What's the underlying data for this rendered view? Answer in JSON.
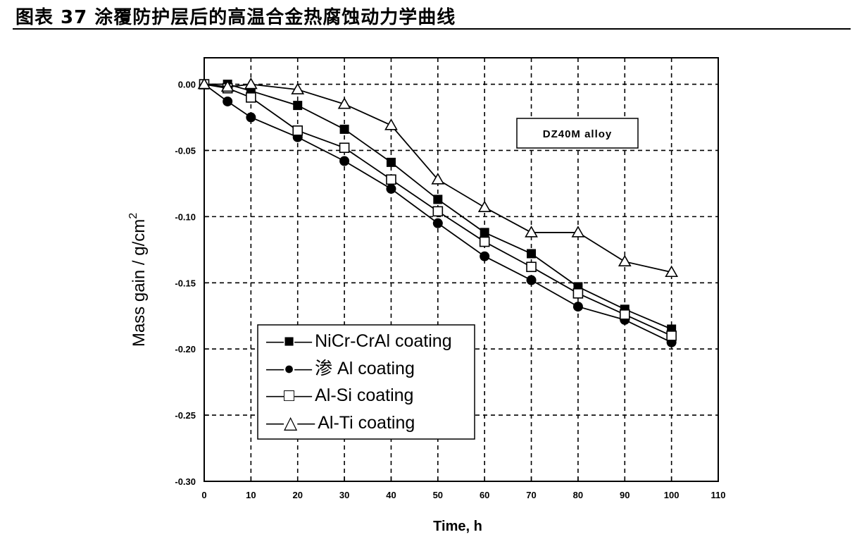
{
  "figure_title": "图表 37 涂覆防护层后的高温合金热腐蚀动力学曲线",
  "colors": {
    "axis": "#000000",
    "grid": "#000000",
    "series": "#000000",
    "background": "#ffffff"
  },
  "chart_data": {
    "type": "line",
    "xlabel": "Time, h",
    "ylabel": "Mass gain / g/cm",
    "ylabel_superscript": "2",
    "xlim": [
      0,
      110
    ],
    "ylim": [
      -0.3,
      0.02
    ],
    "x_ticks": [
      0,
      10,
      20,
      30,
      40,
      50,
      60,
      70,
      80,
      90,
      100,
      110
    ],
    "x_tick_labels": [
      "0",
      "10",
      "20",
      "30",
      "40",
      "50",
      "60",
      "70",
      "80",
      "90",
      "100",
      "110"
    ],
    "y_ticks": [
      0.0,
      -0.05,
      -0.1,
      -0.15,
      -0.2,
      -0.25,
      -0.3
    ],
    "y_tick_labels": [
      "0.00",
      "-0.05",
      "-0.10",
      "-0.15",
      "-0.20",
      "-0.25",
      "-0.30"
    ],
    "grid": true,
    "legend_position": "lower-left",
    "annotation": "DZ40M alloy",
    "series": [
      {
        "name": "NiCr-CrAl coating",
        "legend_prefix": "—■—",
        "marker": "filled-square",
        "x": [
          0,
          5,
          10,
          20,
          30,
          40,
          50,
          60,
          70,
          80,
          90,
          100
        ],
        "y": [
          0.0,
          0.0,
          -0.005,
          -0.016,
          -0.034,
          -0.059,
          -0.087,
          -0.112,
          -0.128,
          -0.153,
          -0.17,
          -0.185
        ]
      },
      {
        "name": "渗 Al coating",
        "legend_prefix": "—●—",
        "marker": "filled-circle",
        "x": [
          0,
          5,
          10,
          20,
          30,
          40,
          50,
          60,
          70,
          80,
          90,
          100
        ],
        "y": [
          0.0,
          -0.013,
          -0.025,
          -0.04,
          -0.058,
          -0.079,
          -0.105,
          -0.13,
          -0.148,
          -0.168,
          -0.178,
          -0.195
        ]
      },
      {
        "name": "Al-Si coating",
        "legend_prefix": "—□—",
        "marker": "open-square",
        "x": [
          0,
          5,
          10,
          20,
          30,
          40,
          50,
          60,
          70,
          80,
          90,
          100
        ],
        "y": [
          0.0,
          -0.003,
          -0.01,
          -0.035,
          -0.048,
          -0.072,
          -0.096,
          -0.119,
          -0.138,
          -0.158,
          -0.174,
          -0.19
        ]
      },
      {
        "name": "Al-Ti coating",
        "legend_prefix": "—△—",
        "marker": "open-triangle",
        "x": [
          0,
          5,
          10,
          20,
          30,
          40,
          50,
          60,
          70,
          80,
          90,
          100
        ],
        "y": [
          0.0,
          -0.002,
          0.0,
          -0.004,
          -0.015,
          -0.031,
          -0.072,
          -0.093,
          -0.112,
          -0.112,
          -0.134,
          -0.142
        ]
      }
    ]
  }
}
